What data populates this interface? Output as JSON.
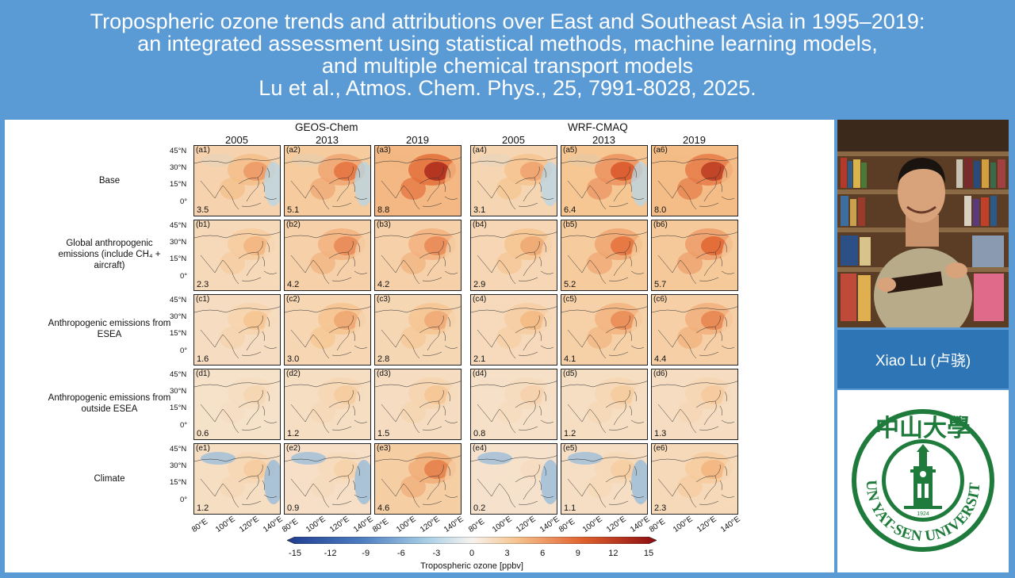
{
  "banner": {
    "line1": "Tropospheric ozone trends and attributions over East and Southeast Asia in 1995–2019:",
    "line2": "an integrated assessment using statistical methods, machine learning models,",
    "line3": "and multiple chemical transport models",
    "line4": "Lu et al., Atmos. Chem. Phys., 25, 7991-8028, 2025."
  },
  "figure": {
    "models": [
      "GEOS-Chem",
      "WRF-CMAQ"
    ],
    "years": [
      "2005",
      "2013",
      "2019",
      "2005",
      "2013",
      "2019"
    ],
    "lat_labels": [
      "45°N",
      "30°N",
      "15°N",
      "0°"
    ],
    "lon_labels": [
      "80°E",
      "100°E",
      "120°E",
      "140°E"
    ],
    "rows": [
      {
        "label": "Base",
        "tags": [
          "(a1)",
          "(a2)",
          "(a3)",
          "(a4)",
          "(a5)",
          "(a6)"
        ],
        "values": [
          "3.5",
          "5.1",
          "8.8",
          "3.1",
          "6.4",
          "8.0"
        ],
        "levels": [
          3.5,
          5.1,
          8.8,
          3.1,
          6.4,
          8.0
        ]
      },
      {
        "label": "Global anthropogenic emissions (include CH₄ + aircraft)",
        "tags": [
          "(b1)",
          "(b2)",
          "(b3)",
          "(b4)",
          "(b5)",
          "(b6)"
        ],
        "values": [
          "2.3",
          "4.2",
          "4.2",
          "2.9",
          "5.2",
          "5.7"
        ],
        "levels": [
          2.3,
          4.2,
          4.2,
          2.9,
          5.2,
          5.7
        ]
      },
      {
        "label": "Anthropogenic emissions from ESEA",
        "tags": [
          "(c1)",
          "(c2)",
          "(c3)",
          "(c4)",
          "(c5)",
          "(c6)"
        ],
        "values": [
          "1.6",
          "3.0",
          "2.8",
          "2.1",
          "4.1",
          "4.4"
        ],
        "levels": [
          1.6,
          3.0,
          2.8,
          2.1,
          4.1,
          4.4
        ]
      },
      {
        "label": "Anthropogenic emissions from outside ESEA",
        "tags": [
          "(d1)",
          "(d2)",
          "(d3)",
          "(d4)",
          "(d5)",
          "(d6)"
        ],
        "values": [
          "0.6",
          "1.2",
          "1.5",
          "0.8",
          "1.2",
          "1.3"
        ],
        "levels": [
          0.6,
          1.2,
          1.5,
          0.8,
          1.2,
          1.3
        ]
      },
      {
        "label": "Climate",
        "tags": [
          "(e1)",
          "(e2)",
          "(e3)",
          "(e4)",
          "(e5)",
          "(e6)"
        ],
        "values": [
          "1.2",
          "0.9",
          "4.6",
          "0.2",
          "1.1",
          "2.3"
        ],
        "levels": [
          1.2,
          0.9,
          4.6,
          0.2,
          1.1,
          2.3
        ]
      }
    ],
    "colorbar": {
      "ticks": [
        "-15",
        "-12",
        "-9",
        "-6",
        "-3",
        "0",
        "3",
        "6",
        "9",
        "12",
        "15"
      ],
      "title": "Tropospheric ozone [ppbv]",
      "range": [
        -15,
        15
      ]
    }
  },
  "person": {
    "name": "Xiao Lu (卢骁)"
  },
  "logo": {
    "text": "SUN YAT-SEN UNIVERSITY",
    "chinese": "中山大學",
    "year": "1924"
  },
  "colors": {
    "banner_bg": "#5b9bd5",
    "name_bg": "#2e75b6",
    "logo_green": "#1e7b3b"
  }
}
